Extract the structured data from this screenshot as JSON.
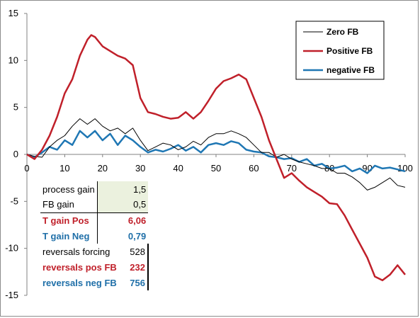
{
  "colors": {
    "zero_fb": "#000000",
    "positive_fb": "#c0202a",
    "negative_fb": "#1f77b4",
    "param_shade": "#ebf1de"
  },
  "chart_data": {
    "type": "line",
    "xlim": [
      0,
      100
    ],
    "ylim": [
      -15,
      15
    ],
    "x_ticks": [
      0,
      10,
      20,
      30,
      40,
      50,
      60,
      70,
      80,
      90,
      100
    ],
    "y_ticks": [
      15,
      10,
      5,
      0,
      -5,
      -10,
      -15
    ],
    "grid": false,
    "legend_position": "top-right",
    "legend": [
      "Zero FB",
      "Positive FB",
      "negative FB"
    ],
    "series": [
      {
        "name": "Zero FB",
        "color": "#000000",
        "x": [
          0,
          2,
          4,
          6,
          8,
          10,
          12,
          14,
          16,
          18,
          20,
          22,
          24,
          26,
          28,
          30,
          32,
          34,
          36,
          38,
          40,
          42,
          44,
          46,
          48,
          50,
          52,
          54,
          56,
          58,
          60,
          62,
          64,
          66,
          68,
          70,
          72,
          74,
          76,
          78,
          80,
          82,
          84,
          86,
          88,
          90,
          92,
          94,
          96,
          98,
          100
        ],
        "y": [
          0,
          -0.2,
          -0.3,
          0.8,
          1.5,
          2.0,
          3.0,
          3.8,
          3.2,
          3.8,
          3.0,
          2.5,
          2.8,
          2.2,
          2.8,
          1.5,
          0.4,
          0.8,
          1.2,
          1.0,
          0.5,
          0.8,
          1.4,
          1.0,
          1.8,
          2.2,
          2.2,
          2.5,
          2.2,
          1.8,
          1.0,
          0.2,
          0.2,
          -0.3,
          0,
          -0.5,
          -0.8,
          -1.0,
          -1.2,
          -1.5,
          -1.5,
          -2.0,
          -2.0,
          -2.4,
          -3.0,
          -3.8,
          -3.5,
          -3.0,
          -2.5,
          -3.3,
          -3.5
        ]
      },
      {
        "name": "Positive FB",
        "color": "#c0202a",
        "x": [
          0,
          2,
          4,
          6,
          8,
          10,
          12,
          14,
          16,
          17,
          18,
          20,
          22,
          24,
          26,
          28,
          30,
          32,
          34,
          36,
          38,
          40,
          42,
          44,
          46,
          48,
          50,
          52,
          54,
          56,
          58,
          60,
          62,
          64,
          66,
          68,
          70,
          72,
          74,
          76,
          78,
          80,
          82,
          84,
          86,
          88,
          90,
          92,
          94,
          96,
          98,
          100
        ],
        "y": [
          0,
          -0.5,
          0.5,
          2.0,
          4.0,
          6.5,
          8.0,
          10.5,
          12.2,
          12.7,
          12.5,
          11.5,
          11.0,
          10.5,
          10.2,
          9.5,
          6.0,
          4.5,
          4.3,
          4.0,
          3.8,
          3.9,
          4.5,
          3.8,
          4.5,
          5.7,
          7.0,
          7.8,
          8.1,
          8.5,
          8.0,
          6.0,
          4.0,
          1.5,
          -0.5,
          -2.5,
          -2.0,
          -2.8,
          -3.5,
          -4.0,
          -4.5,
          -5.2,
          -5.3,
          -6.5,
          -8.0,
          -9.5,
          -11.0,
          -13.0,
          -13.4,
          -12.8,
          -11.8,
          -12.8
        ]
      },
      {
        "name": "negative FB",
        "color": "#1f77b4",
        "x": [
          0,
          2,
          4,
          6,
          8,
          10,
          12,
          14,
          16,
          18,
          20,
          22,
          24,
          26,
          28,
          30,
          32,
          34,
          36,
          38,
          40,
          42,
          44,
          46,
          48,
          50,
          52,
          54,
          56,
          58,
          60,
          62,
          64,
          66,
          68,
          70,
          72,
          74,
          76,
          78,
          80,
          82,
          84,
          86,
          88,
          90,
          92,
          94,
          96,
          98,
          100
        ],
        "y": [
          0,
          -0.3,
          0.2,
          0.8,
          0.5,
          1.5,
          1.0,
          2.5,
          1.8,
          2.5,
          1.5,
          2.2,
          1.0,
          2.0,
          1.5,
          0.8,
          0.2,
          0.5,
          0.3,
          0.6,
          1.0,
          0.4,
          0.8,
          0.2,
          1.0,
          1.2,
          1.0,
          1.4,
          1.2,
          0.5,
          0.3,
          0.2,
          -0.2,
          -0.3,
          -0.5,
          -0.4,
          -0.8,
          -0.5,
          -1.2,
          -1.0,
          -1.5,
          -1.4,
          -1.2,
          -1.8,
          -1.5,
          -2.0,
          -1.2,
          -1.5,
          -1.4,
          -1.6,
          -1.8
        ]
      }
    ]
  },
  "tables": {
    "params": [
      {
        "label": "process gain",
        "value": "1,5",
        "style": "plain",
        "shade": true
      },
      {
        "label": "FB gain",
        "value": "0,5",
        "style": "plain",
        "shade": true
      },
      {
        "label": "T gain Pos",
        "value": "6,06",
        "style": "red",
        "shade": false
      },
      {
        "label": "T gain Neg",
        "value": "0,79",
        "style": "blue",
        "shade": false
      }
    ],
    "reversals": [
      {
        "label": "reversals forcing",
        "value": "528",
        "style": "plain"
      },
      {
        "label": "reversals pos FB",
        "value": "232",
        "style": "red"
      },
      {
        "label": "reversals neg FB",
        "value": "756",
        "style": "blue"
      }
    ]
  }
}
